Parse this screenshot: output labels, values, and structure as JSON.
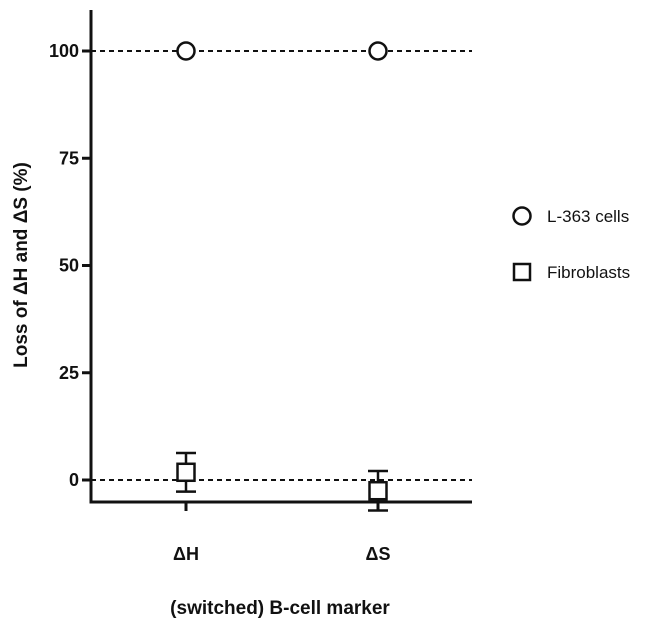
{
  "chart_data": {
    "type": "scatter",
    "title": "",
    "xlabel": "(switched) B-cell marker",
    "ylabel": "Loss of ΔH and ΔS (%)",
    "categories": [
      "ΔH",
      "ΔS"
    ],
    "ylim": [
      -5,
      110
    ],
    "yticks": [
      "0",
      "25",
      "50",
      "75",
      "100"
    ],
    "reference_lines": [
      0,
      100
    ],
    "grid": false,
    "legend_position": "right",
    "series": [
      {
        "name": "L-363 cells",
        "marker": "circle",
        "values": [
          100,
          100
        ],
        "err": [
          0,
          0
        ]
      },
      {
        "name": "Fibroblasts",
        "marker": "square",
        "values": [
          1.8,
          -2.5
        ],
        "err": [
          4.5,
          4.6
        ]
      }
    ]
  },
  "colors": {
    "ink": "#111111",
    "background": "#ffffff"
  }
}
